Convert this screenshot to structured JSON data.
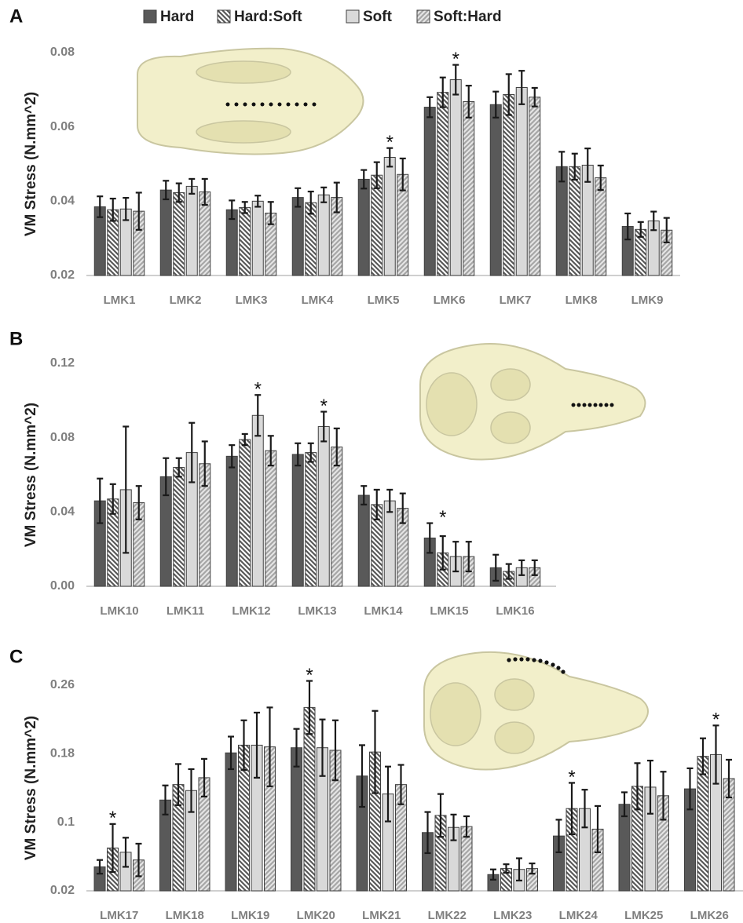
{
  "chart_data": [
    {
      "type": "bar",
      "panel": "A",
      "ylabel": "VM Stress (N.mm^2)",
      "legend": "top",
      "categories": [
        "LMK1",
        "LMK2",
        "LMK3",
        "LMK4",
        "LMK5",
        "LMK6",
        "LMK7",
        "LMK8",
        "LMK9"
      ],
      "series": [
        {
          "name": "Hard",
          "color": "#595959",
          "pattern": "solid",
          "values": [
            0.0385,
            0.043,
            0.0377,
            0.041,
            0.0459,
            0.0653,
            0.066,
            0.0493,
            0.0332
          ],
          "errors": [
            0.0028,
            0.0025,
            0.0025,
            0.0025,
            0.0025,
            0.0027,
            0.0035,
            0.004,
            0.0035
          ]
        },
        {
          "name": "Hard:Soft",
          "color": "#595959",
          "pattern": "back-diagonal",
          "values": [
            0.0377,
            0.0423,
            0.0383,
            0.0396,
            0.047,
            0.0693,
            0.0687,
            0.0493,
            0.0324
          ],
          "errors": [
            0.003,
            0.0025,
            0.0015,
            0.003,
            0.0035,
            0.004,
            0.0055,
            0.0035,
            0.002
          ]
        },
        {
          "name": "Soft",
          "color": "#d9d9d9",
          "pattern": "solid",
          "values": [
            0.0379,
            0.044,
            0.04,
            0.0417,
            0.0518,
            0.0727,
            0.0706,
            0.0497,
            0.0347
          ],
          "errors": [
            0.003,
            0.002,
            0.0015,
            0.002,
            0.0025,
            0.004,
            0.0045,
            0.0045,
            0.0025
          ]
        },
        {
          "name": "Soft:Hard",
          "color": "#a6a6a6",
          "pattern": "diagonal",
          "values": [
            0.0373,
            0.0425,
            0.0368,
            0.041,
            0.0472,
            0.0668,
            0.068,
            0.0463,
            0.0322
          ],
          "errors": [
            0.005,
            0.0035,
            0.003,
            0.004,
            0.0043,
            0.0043,
            0.0025,
            0.0033,
            0.0033
          ]
        }
      ],
      "ylim": [
        0.02,
        0.08
      ],
      "yticks": [
        {
          "value": 0.02,
          "label": "0.02"
        },
        {
          "value": 0.04,
          "label": "0.04"
        },
        {
          "value": 0.06,
          "label": "0.06"
        },
        {
          "value": 0.08,
          "label": "0.08"
        }
      ],
      "annotations": [
        {
          "text": "*",
          "category": "LMK5",
          "series": "Soft"
        },
        {
          "text": "*",
          "category": "LMK6",
          "series": "Soft"
        }
      ]
    },
    {
      "type": "bar",
      "panel": "B",
      "ylabel": "VM Stress (N.mm^2)",
      "categories": [
        "LMK10",
        "LMK11",
        "LMK12",
        "LMK13",
        "LMK14",
        "LMK15",
        "LMK16"
      ],
      "series": [
        {
          "name": "Hard",
          "color": "#595959",
          "pattern": "solid",
          "values": [
            0.046,
            0.059,
            0.07,
            0.071,
            0.049,
            0.026,
            0.01
          ],
          "errors": [
            0.012,
            0.01,
            0.006,
            0.006,
            0.005,
            0.008,
            0.007
          ]
        },
        {
          "name": "Hard:Soft",
          "color": "#595959",
          "pattern": "back-diagonal",
          "values": [
            0.047,
            0.064,
            0.079,
            0.072,
            0.044,
            0.018,
            0.008
          ],
          "errors": [
            0.008,
            0.005,
            0.003,
            0.005,
            0.008,
            0.009,
            0.004
          ]
        },
        {
          "name": "Soft",
          "color": "#d9d9d9",
          "pattern": "solid",
          "values": [
            0.052,
            0.072,
            0.092,
            0.086,
            0.046,
            0.016,
            0.01
          ],
          "errors": [
            0.034,
            0.016,
            0.011,
            0.008,
            0.006,
            0.008,
            0.004
          ]
        },
        {
          "name": "Soft:Hard",
          "color": "#a6a6a6",
          "pattern": "diagonal",
          "values": [
            0.045,
            0.066,
            0.073,
            0.075,
            0.042,
            0.016,
            0.01
          ],
          "errors": [
            0.009,
            0.012,
            0.008,
            0.01,
            0.008,
            0.008,
            0.004
          ]
        }
      ],
      "ylim": [
        0,
        0.12
      ],
      "yticks": [
        {
          "value": 0,
          "label": "0.00"
        },
        {
          "value": 0.04,
          "label": "0.04"
        },
        {
          "value": 0.08,
          "label": "0.08"
        },
        {
          "value": 0.12,
          "label": "0.12"
        }
      ],
      "annotations": [
        {
          "text": "*",
          "category": "LMK12",
          "series": "Soft"
        },
        {
          "text": "*",
          "category": "LMK13",
          "series": "Soft"
        },
        {
          "text": "*",
          "category": "LMK15",
          "series": "Hard:Soft"
        }
      ]
    },
    {
      "type": "bar",
      "panel": "C",
      "ylabel": "VM Stress (N.mm^2)",
      "categories": [
        "LMK17",
        "LMK18",
        "LMK19",
        "LMK20",
        "LMK21",
        "LMK22",
        "LMK23",
        "LMK24",
        "LMK25",
        "LMK26"
      ],
      "series": [
        {
          "name": "Hard",
          "color": "#595959",
          "pattern": "solid",
          "values": [
            0.048,
            0.126,
            0.181,
            0.187,
            0.154,
            0.088,
            0.039,
            0.084,
            0.121,
            0.139
          ],
          "errors": [
            0.008,
            0.017,
            0.019,
            0.022,
            0.036,
            0.024,
            0.006,
            0.019,
            0.014,
            0.024
          ]
        },
        {
          "name": "Hard:Soft",
          "color": "#595959",
          "pattern": "back-diagonal",
          "values": [
            0.07,
            0.144,
            0.19,
            0.234,
            0.182,
            0.108,
            0.046,
            0.116,
            0.142,
            0.177
          ],
          "errors": [
            0.028,
            0.024,
            0.029,
            0.031,
            0.048,
            0.025,
            0.005,
            0.03,
            0.027,
            0.021
          ]
        },
        {
          "name": "Soft",
          "color": "#d9d9d9",
          "pattern": "solid",
          "values": [
            0.065,
            0.137,
            0.19,
            0.187,
            0.133,
            0.094,
            0.045,
            0.116,
            0.141,
            0.179
          ],
          "errors": [
            0.017,
            0.025,
            0.038,
            0.033,
            0.032,
            0.015,
            0.013,
            0.022,
            0.031,
            0.034
          ]
        },
        {
          "name": "Soft:Hard",
          "color": "#a6a6a6",
          "pattern": "diagonal",
          "values": [
            0.056,
            0.152,
            0.188,
            0.184,
            0.144,
            0.095,
            0.046,
            0.092,
            0.131,
            0.151
          ],
          "errors": [
            0.019,
            0.022,
            0.046,
            0.035,
            0.023,
            0.012,
            0.006,
            0.027,
            0.028,
            0.022
          ]
        }
      ],
      "ylim": [
        0.02,
        0.26
      ],
      "yticks": [
        0.02,
        0.1,
        0.18,
        0.26
      ],
      "annotations": [
        {
          "text": "*",
          "category": "LMK17",
          "series": "Hard:Soft"
        },
        {
          "text": "*",
          "category": "LMK20",
          "series": "Hard:Soft"
        },
        {
          "text": "*",
          "category": "LMK24",
          "series": "Hard:Soft"
        },
        {
          "text": "*",
          "category": "LMK26",
          "series": "Soft"
        }
      ]
    }
  ]
}
